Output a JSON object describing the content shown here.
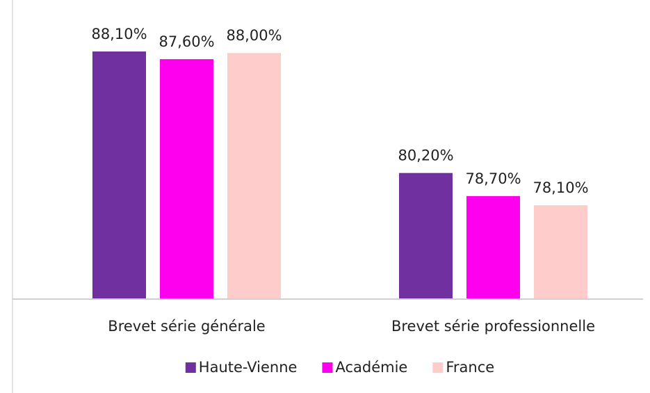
{
  "chart_data": {
    "type": "bar",
    "categories": [
      "Brevet série générale",
      "Brevet série professionnelle"
    ],
    "series": [
      {
        "name": "Haute-Vienne",
        "color": "#7030a0",
        "values": [
          88.1,
          80.2
        ],
        "value_labels": [
          "88,10%",
          "80,20%"
        ]
      },
      {
        "name": "Académie",
        "color": "#ff00ee",
        "values": [
          87.6,
          78.7
        ],
        "value_labels": [
          "87,60%",
          "78,70%"
        ]
      },
      {
        "name": "France",
        "color": "#ffcccc",
        "values": [
          88.0,
          78.1
        ],
        "value_labels": [
          "88,00%",
          "78,10%"
        ]
      }
    ],
    "ylim": [
      72,
      90
    ],
    "legend": "bottom"
  }
}
